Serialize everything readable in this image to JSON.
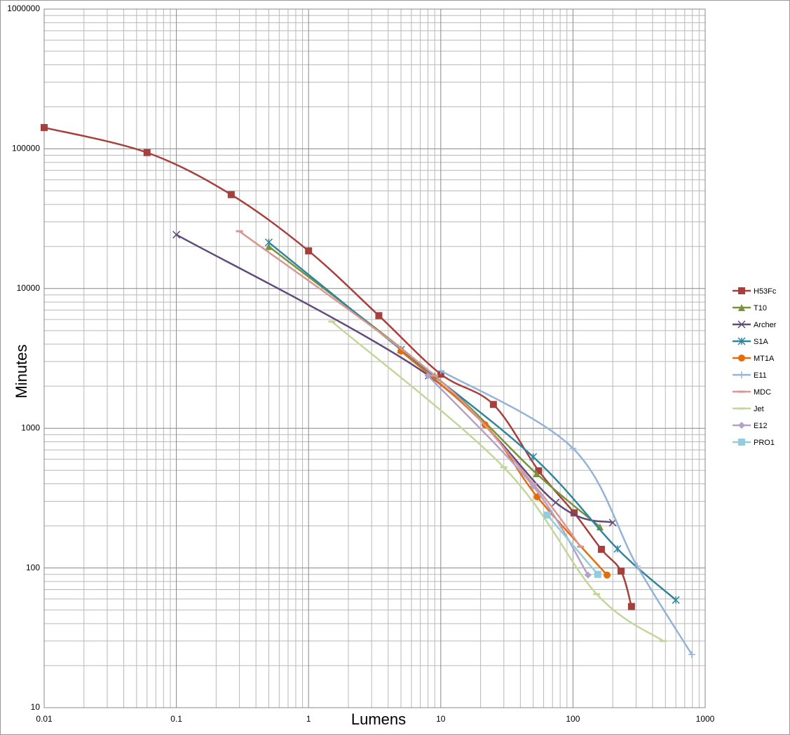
{
  "chart_data": {
    "type": "scatter",
    "smooth": true,
    "x_label": "Lumens",
    "y_label": "Minutes",
    "xlog": true,
    "ylog": true,
    "grid": true,
    "minor_grid": true,
    "legend": "right",
    "xlim": [
      0.01,
      1000
    ],
    "ylim": [
      10,
      1000000
    ],
    "xticks": [
      0.01,
      0.1,
      1,
      10,
      100,
      1000
    ],
    "yticks": [
      10,
      100,
      1000,
      10000,
      100000,
      1000000
    ],
    "series": [
      {
        "name": "H53Fc",
        "color": "#a5403d",
        "marker": "square",
        "x": [
          0.01,
          0.06,
          0.26,
          1,
          3.4,
          10,
          25,
          55,
          102,
          164,
          231,
          277
        ],
        "values": [
          142000,
          94000,
          47000,
          18600,
          6400,
          2440,
          1480,
          496,
          248,
          136,
          95,
          53
        ]
      },
      {
        "name": "T10",
        "color": "#77933c",
        "marker": "triangle",
        "x": [
          0.5,
          9,
          53,
          160
        ],
        "values": [
          20000,
          2380,
          473,
          197
        ]
      },
      {
        "name": "Archer",
        "color": "#604a7b",
        "marker": "x",
        "x": [
          0.1,
          8.1,
          74,
          200
        ],
        "values": [
          24300,
          2380,
          294,
          211
        ]
      },
      {
        "name": "S1A",
        "color": "#31859c",
        "marker": "asterisk",
        "x": [
          0.5,
          5,
          50,
          217,
          600
        ],
        "values": [
          21400,
          3650,
          624,
          137,
          59
        ]
      },
      {
        "name": "MT1A",
        "color": "#e46c0a",
        "marker": "circle",
        "x": [
          5,
          21.6,
          53.6,
          181
        ],
        "values": [
          3570,
          1060,
          323,
          89
        ]
      },
      {
        "name": "E11",
        "color": "#95b3d7",
        "marker": "plus",
        "x": [
          10,
          100,
          306,
          793
        ],
        "values": [
          2580,
          718,
          103,
          24
        ]
      },
      {
        "name": "MDC",
        "color": "#d99694",
        "marker": "dash",
        "x": [
          0.3,
          9,
          50,
          114
        ],
        "values": [
          25700,
          2380,
          400,
          142
        ]
      },
      {
        "name": "Jet",
        "color": "#c3d69b",
        "marker": "dash",
        "x": [
          1.5,
          30,
          151,
          481
        ],
        "values": [
          5800,
          525,
          65,
          30
        ]
      },
      {
        "name": "E12",
        "color": "#b3a2c7",
        "marker": "diamond",
        "x": [
          8,
          50,
          130
        ],
        "values": [
          2380,
          385,
          89
        ]
      },
      {
        "name": "PRO1",
        "color": "#93cddd",
        "marker": "square",
        "x": [
          64,
          154
        ],
        "values": [
          239,
          90
        ]
      }
    ]
  }
}
